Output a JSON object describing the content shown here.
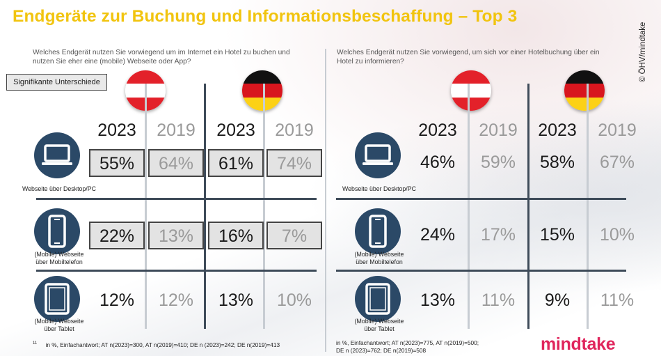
{
  "title": "Endgeräte zur Buchung und Informationsbeschaffung – Top 3",
  "copyright": "© ÖHV/mindtake",
  "significant_label": "Signifikante Unterschiede",
  "logo": "mindtake",
  "rows": [
    {
      "label_line1": "Webseite über Desktop/PC",
      "label_line2": "",
      "icon": "laptop-icon"
    },
    {
      "label_line1": "(Mobile) Webseite",
      "label_line2": "über Mobiltelefon",
      "icon": "smartphone-icon"
    },
    {
      "label_line1": "(Mobile) Webseite",
      "label_line2": "über Tablet",
      "icon": "tablet-icon"
    }
  ],
  "colors": {
    "title": "#f1c40f",
    "icon_bg": "#2b4967",
    "grid": "#3e4b59",
    "logo": "#e0255c"
  },
  "chart_data": [
    {
      "type": "table",
      "title": "Welches Endgerät nutzen Sie vorwiegend um im Internet ein Hotel zu buchen und nutzen Sie eher eine (mobile) Webseite oder App?",
      "question_line1": "Welches Endgerät nutzen Sie vorwiegend um im Internet ein Hotel zu buchen und",
      "question_line2": "nutzen Sie eher eine (mobile) Webseite oder App?",
      "unit": "%",
      "groups": [
        "AT",
        "DE"
      ],
      "columns": [
        "2023",
        "2019",
        "2023",
        "2019"
      ],
      "rows": [
        "Webseite über Desktop/PC",
        "(Mobile) Webseite über Mobiltelefon",
        "(Mobile) Webseite über Tablet"
      ],
      "series": [
        {
          "name": "AT 2023",
          "values": [
            55,
            22,
            12
          ]
        },
        {
          "name": "AT 2019",
          "values": [
            64,
            13,
            12
          ]
        },
        {
          "name": "DE 2023",
          "values": [
            61,
            16,
            13
          ]
        },
        {
          "name": "DE 2019",
          "values": [
            74,
            7,
            10
          ]
        }
      ],
      "significant": [
        [
          true,
          true,
          true,
          true
        ],
        [
          true,
          true,
          true,
          true
        ],
        [
          false,
          false,
          false,
          false
        ]
      ],
      "footnote_marker": "11",
      "footnote": "in %, Einfachantwort; AT n(2023)=300, AT n(2019)=410; DE n (2023)=242; DE n(2019)=413"
    },
    {
      "type": "table",
      "title": "Welches Endgerät nutzen Sie vorwiegend, um sich vor einer Hotelbuchung über ein Hotel zu informieren?",
      "question_line1": "Welches Endgerät nutzen Sie vorwiegend, um sich vor einer Hotelbuchung über ein",
      "question_line2": "Hotel zu informieren?",
      "unit": "%",
      "groups": [
        "AT",
        "DE"
      ],
      "columns": [
        "2023",
        "2019",
        "2023",
        "2019"
      ],
      "rows": [
        "Webseite über Desktop/PC",
        "(Mobile) Webseite über Mobiltelefon",
        "(Mobile) Webseite über Tablet"
      ],
      "series": [
        {
          "name": "AT 2023",
          "values": [
            46,
            24,
            13
          ]
        },
        {
          "name": "AT 2019",
          "values": [
            59,
            17,
            11
          ]
        },
        {
          "name": "DE 2023",
          "values": [
            58,
            15,
            9
          ]
        },
        {
          "name": "DE 2019",
          "values": [
            67,
            10,
            11
          ]
        }
      ],
      "significant": [
        [
          false,
          false,
          false,
          false
        ],
        [
          false,
          false,
          false,
          false
        ],
        [
          false,
          false,
          false,
          false
        ]
      ],
      "footnote_line1": "in %, Einfachantwort; AT n(2023)=775, AT n(2019)=500;",
      "footnote_line2": "DE n (2023)=762; DE n(2019)=508"
    }
  ]
}
